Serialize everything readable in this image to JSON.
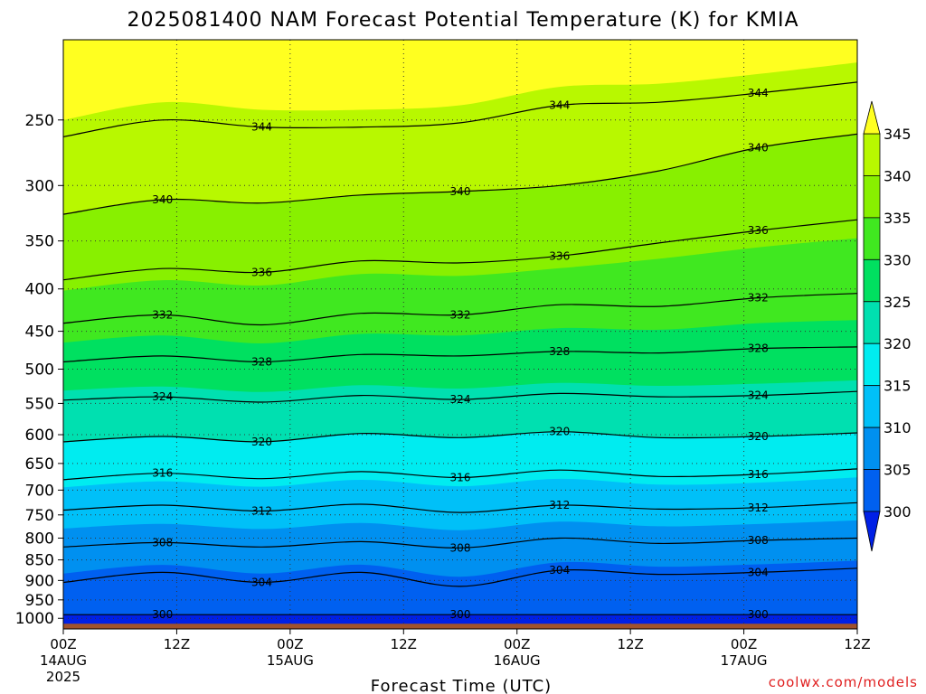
{
  "chart_data": {
    "type": "heatmap",
    "title": "2025081400 NAM Forecast Potential Temperature (K) for KMIA",
    "xlabel": "Forecast Time (UTC)",
    "ylabel": "",
    "credit": "coolwx.com/models",
    "y_axis": {
      "scale": "log-pressure",
      "inverted": true,
      "ticks": [
        250,
        300,
        350,
        400,
        450,
        500,
        550,
        600,
        650,
        700,
        750,
        800,
        850,
        900,
        950,
        1000
      ],
      "tick_labels": [
        "250",
        "300",
        "350",
        "400",
        "450",
        "500",
        "550",
        "600",
        "650",
        "700",
        "750",
        "800",
        "850",
        "900",
        "950",
        "1000"
      ],
      "range": [
        1030,
        200
      ]
    },
    "x_axis": {
      "range_hours": [
        0,
        84
      ],
      "ticks": [
        {
          "hour": 0,
          "label": "00Z",
          "date": "14AUG",
          "year": "2025"
        },
        {
          "hour": 12,
          "label": "12Z",
          "date": "",
          "year": ""
        },
        {
          "hour": 24,
          "label": "00Z",
          "date": "15AUG",
          "year": ""
        },
        {
          "hour": 36,
          "label": "12Z",
          "date": "",
          "year": ""
        },
        {
          "hour": 48,
          "label": "00Z",
          "date": "16AUG",
          "year": ""
        },
        {
          "hour": 60,
          "label": "12Z",
          "date": "",
          "year": ""
        },
        {
          "hour": 72,
          "label": "00Z",
          "date": "17AUG",
          "year": ""
        },
        {
          "hour": 84,
          "label": "12Z",
          "date": "",
          "year": ""
        }
      ]
    },
    "grid": true,
    "colorbar": {
      "levels": [
        300,
        305,
        310,
        315,
        320,
        325,
        330,
        335,
        340,
        345
      ],
      "colors": [
        "#0020e6",
        "#0060f0",
        "#0090f0",
        "#00c0f8",
        "#00ecf0",
        "#00e0b0",
        "#00e060",
        "#40e820",
        "#88f000",
        "#b8f800",
        "#ffff20"
      ],
      "extend": "both"
    },
    "contours": [
      {
        "level": 300,
        "label": "300",
        "pressures": [
          990,
          990,
          990,
          990,
          990,
          990,
          990,
          990,
          990
        ]
      },
      {
        "level": 304,
        "label": "304",
        "pressures": [
          905,
          880,
          905,
          880,
          915,
          875,
          885,
          880,
          870
        ]
      },
      {
        "level": 308,
        "label": "308",
        "pressures": [
          820,
          810,
          820,
          808,
          822,
          800,
          812,
          805,
          800
        ]
      },
      {
        "level": 312,
        "label": "312",
        "pressures": [
          740,
          730,
          742,
          728,
          745,
          730,
          738,
          735,
          725
        ]
      },
      {
        "level": 316,
        "label": "316",
        "pressures": [
          680,
          668,
          678,
          665,
          676,
          662,
          674,
          670,
          660
        ]
      },
      {
        "level": 320,
        "label": "320",
        "pressures": [
          612,
          603,
          612,
          598,
          605,
          595,
          605,
          603,
          597
        ]
      },
      {
        "level": 324,
        "label": "324",
        "pressures": [
          545,
          540,
          548,
          538,
          544,
          535,
          540,
          538,
          532
        ]
      },
      {
        "level": 328,
        "label": "328",
        "pressures": [
          490,
          482,
          490,
          480,
          482,
          476,
          478,
          472,
          470
        ]
      },
      {
        "level": 332,
        "label": "332",
        "pressures": [
          440,
          430,
          442,
          428,
          430,
          418,
          420,
          410,
          405
        ]
      },
      {
        "level": 336,
        "label": "336",
        "pressures": [
          390,
          378,
          382,
          370,
          372,
          365,
          352,
          340,
          330
        ]
      },
      {
        "level": 340,
        "label": "340",
        "pressures": [
          325,
          312,
          315,
          308,
          305,
          300,
          288,
          270,
          260
        ]
      },
      {
        "level": 344,
        "label": "344",
        "pressures": [
          262,
          250,
          255,
          255,
          252,
          240,
          238,
          232,
          225
        ]
      }
    ],
    "surface_color": "#a0522d"
  }
}
